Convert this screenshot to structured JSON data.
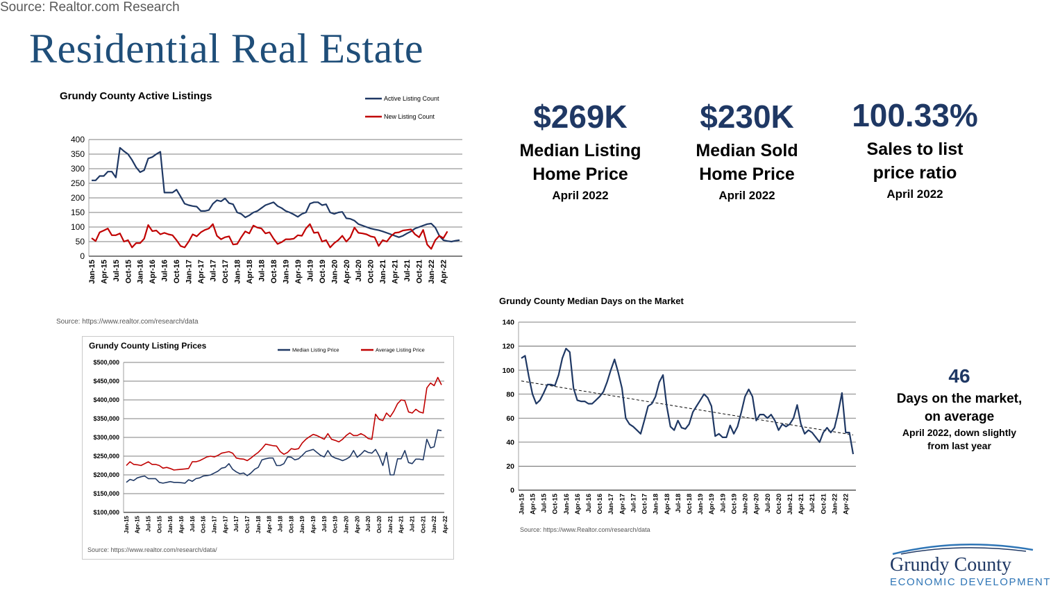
{
  "title": "Residential Real Estate",
  "stats": [
    {
      "value": "$269K",
      "label_1": "Median Listing",
      "label_2": "Home Price",
      "date": "April 2022"
    },
    {
      "value": "$230K",
      "label_1": "Median Sold",
      "label_2": "Home Price",
      "date": "April 2022"
    },
    {
      "value": "100.33%",
      "label_1": "Sales to list",
      "label_2": "price ratio",
      "date": "April 2022"
    }
  ],
  "days_stat": {
    "value": "46",
    "label_1": "Days on the market,",
    "label_2": "on average",
    "note_1": "April 2022, down slightly",
    "note_2": "from last year"
  },
  "footer_source": "Source: Realtor.com Research",
  "logo": {
    "line1": "Grundy County",
    "line2": "ECONOMIC DEVELOPMENT"
  },
  "colors": {
    "title": "#1f4e79",
    "navy_series": "#1f3864",
    "red_series": "#c00000"
  },
  "x_tick_labels": [
    "Jan-15",
    "Apr-15",
    "Jul-15",
    "Oct-15",
    "Jan-16",
    "Apr-16",
    "Jul-16",
    "Oct-16",
    "Jan-17",
    "Apr-17",
    "Jul-17",
    "Oct-17",
    "Jan-18",
    "Apr-18",
    "Jul-18",
    "Oct-18",
    "Jan-19",
    "Apr-19",
    "Jul-19",
    "Oct-19",
    "Jan-20",
    "Apr-20",
    "Jul-20",
    "Oct-20",
    "Jan-21",
    "Apr-21",
    "Jul-21",
    "Oct-21",
    "Jan-22",
    "Apr-22"
  ],
  "chart_data": [
    {
      "type": "line",
      "title": "Grundy County Active Listings",
      "source": "Source:  https://www.realtor.com/research/data",
      "x_start": "Jan-15",
      "x_end": "May-22",
      "ylim": [
        0,
        400
      ],
      "yticks": [
        "0",
        "50",
        "100",
        "150",
        "200",
        "250",
        "300",
        "350",
        "400"
      ],
      "grid": true,
      "legend": "top-right",
      "series": [
        {
          "name": "Active Listing Count",
          "color": "#1f3864",
          "values": [
            260,
            260,
            275,
            275,
            290,
            290,
            270,
            372,
            360,
            350,
            330,
            305,
            288,
            295,
            335,
            340,
            350,
            358,
            218,
            218,
            218,
            228,
            205,
            180,
            175,
            172,
            170,
            155,
            155,
            158,
            180,
            192,
            188,
            198,
            182,
            178,
            150,
            145,
            133,
            140,
            150,
            155,
            165,
            175,
            180,
            185,
            172,
            165,
            155,
            150,
            143,
            135,
            145,
            150,
            180,
            185,
            185,
            175,
            178,
            150,
            145,
            150,
            152,
            130,
            128,
            122,
            110,
            105,
            100,
            95,
            92,
            89,
            85,
            80,
            75,
            70,
            65,
            70,
            78,
            85,
            95,
            100,
            105,
            110,
            112,
            98,
            70,
            55,
            52,
            50,
            53,
            55
          ]
        },
        {
          "name": "New Listing Count",
          "color": "#c00000",
          "values": [
            62,
            52,
            82,
            88,
            95,
            72,
            72,
            78,
            50,
            55,
            30,
            45,
            45,
            60,
            107,
            86,
            88,
            75,
            80,
            75,
            72,
            55,
            35,
            30,
            50,
            75,
            68,
            82,
            90,
            95,
            110,
            70,
            58,
            65,
            68,
            40,
            42,
            65,
            85,
            78,
            105,
            98,
            95,
            78,
            82,
            60,
            42,
            48,
            58,
            58,
            60,
            72,
            70,
            95,
            110,
            80,
            82,
            50,
            55,
            30,
            45,
            55,
            70,
            50,
            65,
            98,
            80,
            78,
            75,
            68,
            65,
            35,
            55,
            50,
            68,
            80,
            82,
            88,
            90,
            92,
            75,
            65,
            90,
            40,
            25,
            55,
            70,
            62,
            85
          ]
        }
      ]
    },
    {
      "type": "line",
      "title": "Grundy County Listing Prices",
      "source": "Source:  https://www.realtor.com/research/data/",
      "x_start": "Jan-15",
      "x_end": "May-22",
      "ylim": [
        100000,
        500000
      ],
      "yticks": [
        "$100,000",
        "$150,000",
        "$200,000",
        "$250,000",
        "$300,000",
        "$350,000",
        "$400,000",
        "$450,000",
        "$500,000"
      ],
      "grid": true,
      "legend": "top-right",
      "series": [
        {
          "name": "Median Listing Price",
          "color": "#1f3864",
          "values": [
            180000,
            188000,
            185000,
            192000,
            195000,
            197000,
            190000,
            190000,
            190000,
            180000,
            178000,
            180000,
            182000,
            180000,
            180000,
            179000,
            178000,
            187000,
            183000,
            190000,
            192000,
            197000,
            198000,
            200000,
            205000,
            210000,
            218000,
            220000,
            230000,
            215000,
            208000,
            203000,
            205000,
            198000,
            205000,
            215000,
            220000,
            240000,
            243000,
            245000,
            245000,
            225000,
            225000,
            230000,
            248000,
            247000,
            240000,
            243000,
            252000,
            262000,
            265000,
            268000,
            260000,
            252000,
            248000,
            265000,
            250000,
            245000,
            242000,
            238000,
            242000,
            248000,
            265000,
            247000,
            255000,
            265000,
            260000,
            258000,
            268000,
            250000,
            225000,
            260000,
            200000,
            200000,
            243000,
            243000,
            265000,
            233000,
            230000,
            242000,
            242000,
            240000,
            295000,
            272000,
            275000,
            320000,
            318000
          ]
        },
        {
          "name": "Average Listing Price",
          "color": "#c00000",
          "values": [
            225000,
            235000,
            228000,
            227000,
            225000,
            230000,
            235000,
            228000,
            228000,
            225000,
            218000,
            220000,
            217000,
            213000,
            214000,
            215000,
            216000,
            217000,
            235000,
            235000,
            238000,
            243000,
            248000,
            250000,
            248000,
            252000,
            258000,
            260000,
            262000,
            258000,
            245000,
            243000,
            242000,
            238000,
            245000,
            253000,
            260000,
            270000,
            282000,
            280000,
            278000,
            277000,
            262000,
            255000,
            260000,
            270000,
            268000,
            270000,
            285000,
            295000,
            302000,
            308000,
            305000,
            300000,
            295000,
            310000,
            295000,
            292000,
            288000,
            295000,
            305000,
            312000,
            305000,
            305000,
            310000,
            305000,
            297000,
            295000,
            362000,
            348000,
            345000,
            365000,
            355000,
            370000,
            390000,
            400000,
            398000,
            368000,
            365000,
            375000,
            368000,
            365000,
            432000,
            445000,
            438000,
            460000,
            440000
          ]
        }
      ]
    },
    {
      "type": "line",
      "title": "Grundy County Median Days on the Market",
      "source": "Source:  https://www.Realtor.com/research/data",
      "x_start": "Jan-15",
      "x_end": "May-22",
      "ylim": [
        0,
        140
      ],
      "yticks": [
        "0",
        "20",
        "40",
        "60",
        "80",
        "100",
        "120",
        "140"
      ],
      "grid": true,
      "legend": "none",
      "trendline": {
        "start": 91,
        "end": 46
      },
      "series": [
        {
          "name": "Median Days on the Market",
          "color": "#1f3864",
          "values": [
            110,
            112,
            95,
            80,
            72,
            75,
            81,
            88,
            88,
            87,
            96,
            110,
            118,
            115,
            85,
            75,
            74,
            74,
            72,
            72,
            75,
            78,
            82,
            90,
            100,
            109,
            98,
            85,
            60,
            55,
            53,
            50,
            47,
            58,
            70,
            72,
            78,
            90,
            96,
            70,
            53,
            50,
            58,
            52,
            51,
            55,
            65,
            70,
            75,
            80,
            77,
            70,
            45,
            47,
            44,
            44,
            54,
            47,
            53,
            65,
            78,
            84,
            78,
            58,
            63,
            63,
            60,
            63,
            58,
            50,
            55,
            53,
            55,
            60,
            71,
            55,
            47,
            50,
            48,
            44,
            40,
            48,
            52,
            48,
            52,
            65,
            81,
            48,
            48,
            30
          ]
        }
      ]
    }
  ]
}
